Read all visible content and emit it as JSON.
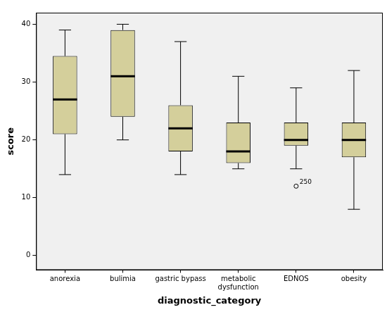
{
  "chart_data": {
    "type": "box",
    "x_label": "diagnostic_category",
    "y_label": "score",
    "categories": [
      "anorexia",
      "bulimia",
      "gastric bypass",
      "metabolic dysfunction",
      "EDNOS",
      "obesity"
    ],
    "min": [
      14,
      20,
      14,
      15,
      15,
      8
    ],
    "q1": [
      21,
      24,
      18,
      16,
      19,
      17
    ],
    "median": [
      27,
      31,
      22,
      18,
      20,
      20
    ],
    "q3": [
      34.5,
      39,
      26,
      23,
      23,
      23
    ],
    "max": [
      39,
      40,
      37,
      31,
      29,
      32
    ],
    "outliers": [
      {
        "category": "EDNOS",
        "value": 12,
        "label": "250"
      }
    ],
    "color": "#d4cf9b",
    "ylim": [
      -2.5,
      42
    ],
    "yticks": [
      0,
      10,
      20,
      30,
      40
    ],
    "grid": false
  }
}
